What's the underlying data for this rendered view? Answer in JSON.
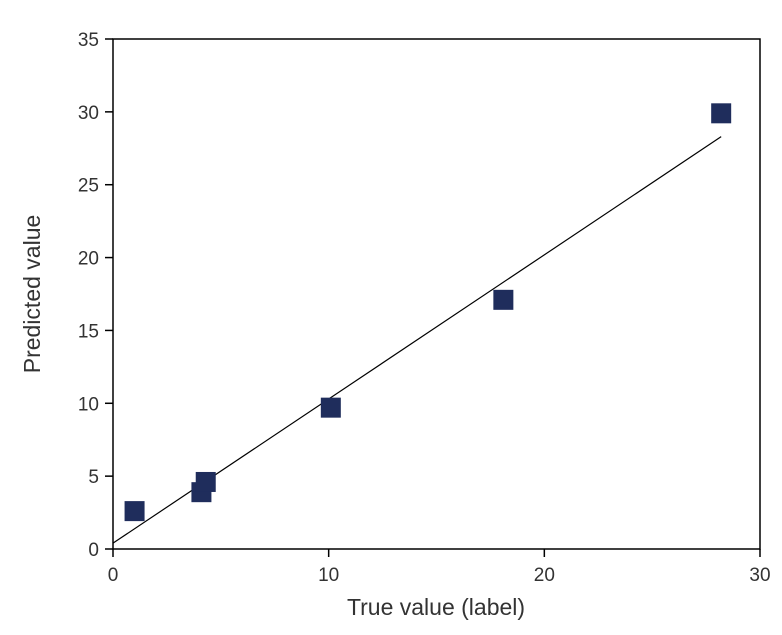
{
  "chart_data": {
    "type": "scatter",
    "xlabel": "True value (label)",
    "ylabel": "Predicted value",
    "xlim": [
      0,
      30
    ],
    "ylim": [
      0,
      35
    ],
    "x_ticks": [
      0,
      10,
      20,
      30
    ],
    "y_ticks": [
      0,
      5,
      10,
      15,
      20,
      25,
      30,
      35
    ],
    "grid": false,
    "marker_color": "#1f2d5c",
    "points": [
      {
        "x": 1.0,
        "y": 2.6
      },
      {
        "x": 4.1,
        "y": 3.9
      },
      {
        "x": 4.3,
        "y": 4.6
      },
      {
        "x": 10.1,
        "y": 9.7
      },
      {
        "x": 18.1,
        "y": 17.1
      },
      {
        "x": 28.2,
        "y": 29.9
      }
    ],
    "fit_line": {
      "x": [
        0,
        28.2
      ],
      "y": [
        0.4,
        28.3
      ]
    }
  }
}
